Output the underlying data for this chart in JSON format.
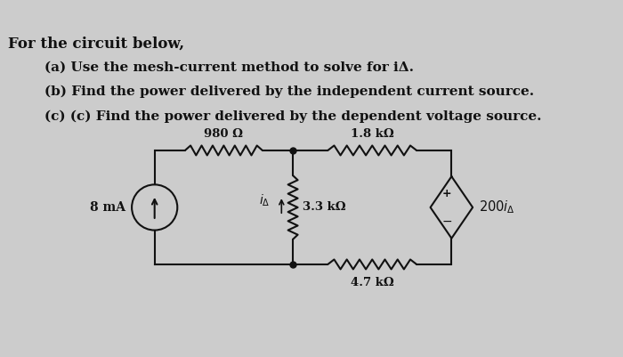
{
  "background_color": "#cccccc",
  "title_text": "For the circuit below,",
  "line_a": "(a) Use the mesh-current method to solve for iΔ.",
  "line_b": "(b) Find the power delivered by the independent current source.",
  "line_c": "(c) (c) Find the power delivered by the dependent voltage source.",
  "resistor_top_left_label": "980 Ω",
  "resistor_top_right_label": "1.8 kΩ",
  "resistor_mid_label": "3.3 kΩ",
  "resistor_bot_label": "4.7 kΩ",
  "current_source_label": "8 mA",
  "dep_voltage_label": "200iΔ",
  "ia_label": "iΔ",
  "text_color": "#111111",
  "line_color": "#111111",
  "figw": 7.0,
  "figh": 4.01,
  "dpi": 100
}
